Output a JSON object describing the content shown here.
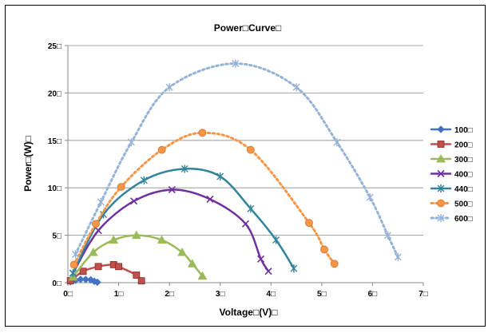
{
  "chart_data": {
    "type": "scatter",
    "title": "Power□Curve□",
    "xlabel": "Voltage□(V)□",
    "ylabel": "Power□(W)□",
    "xlim": [
      0,
      7
    ],
    "ylim": [
      0,
      25
    ],
    "xticks": [
      0,
      1,
      2,
      3,
      4,
      5,
      6,
      7
    ],
    "yticks": [
      0,
      5,
      10,
      15,
      20,
      25
    ],
    "xtick_labels": [
      "0□",
      "1□",
      "2□",
      "3□",
      "4□",
      "5□",
      "6□",
      "7□"
    ],
    "ytick_labels": [
      "0□",
      "5□",
      "10□",
      "15□",
      "20□",
      "25□"
    ],
    "grid": "horizontal",
    "legend_position": "right",
    "series": [
      {
        "name": "100□",
        "color": "#4472C4",
        "marker": "diamond",
        "line": "solid",
        "x": [
          0.05,
          0.15,
          0.25,
          0.35,
          0.45,
          0.52,
          0.58
        ],
        "y": [
          0.1,
          0.25,
          0.35,
          0.35,
          0.3,
          0.15,
          0.05
        ]
      },
      {
        "name": "200□",
        "color": "#C0504D",
        "marker": "square",
        "line": "solid",
        "x": [
          0.05,
          0.3,
          0.6,
          0.9,
          1.0,
          1.35,
          1.45
        ],
        "y": [
          0.2,
          1.2,
          1.7,
          1.9,
          1.7,
          0.8,
          0.2
        ]
      },
      {
        "name": "300□",
        "color": "#9BBB59",
        "marker": "triangle",
        "line": "solid",
        "x": [
          0.1,
          0.5,
          0.9,
          1.35,
          1.85,
          2.25,
          2.45,
          2.65
        ],
        "y": [
          0.6,
          3.2,
          4.5,
          5.0,
          4.5,
          3.2,
          2.0,
          0.7
        ]
      },
      {
        "name": "400□",
        "color": "#7030A0",
        "marker": "x",
        "line": "solid",
        "x": [
          0.1,
          0.6,
          1.3,
          2.05,
          2.8,
          3.5,
          3.8,
          3.95
        ],
        "y": [
          1.0,
          5.5,
          8.6,
          9.8,
          8.8,
          6.2,
          2.5,
          1.2
        ]
      },
      {
        "name": "440□",
        "color": "#31849B",
        "marker": "star",
        "line": "solid",
        "x": [
          0.1,
          0.7,
          1.5,
          2.3,
          3.0,
          3.6,
          4.1,
          4.45
        ],
        "y": [
          1.0,
          7.2,
          10.8,
          12.0,
          11.2,
          7.8,
          4.5,
          1.5
        ]
      },
      {
        "name": "500□",
        "color": "#F79646",
        "marker": "circle",
        "line": "dotted",
        "x": [
          0.12,
          0.55,
          1.05,
          1.85,
          2.65,
          3.6,
          4.75,
          5.05,
          5.25
        ],
        "y": [
          1.9,
          6.2,
          10.1,
          14.0,
          15.8,
          14.0,
          6.3,
          3.5,
          2.0
        ]
      },
      {
        "name": "600□",
        "color": "#95B3D7",
        "marker": "star",
        "line": "dotted",
        "x": [
          0.15,
          0.65,
          1.25,
          2.0,
          3.3,
          4.5,
          5.3,
          5.95,
          6.3,
          6.5
        ],
        "y": [
          3.0,
          8.5,
          14.8,
          20.6,
          23.1,
          20.6,
          14.8,
          9.0,
          5.0,
          2.7
        ]
      }
    ]
  }
}
